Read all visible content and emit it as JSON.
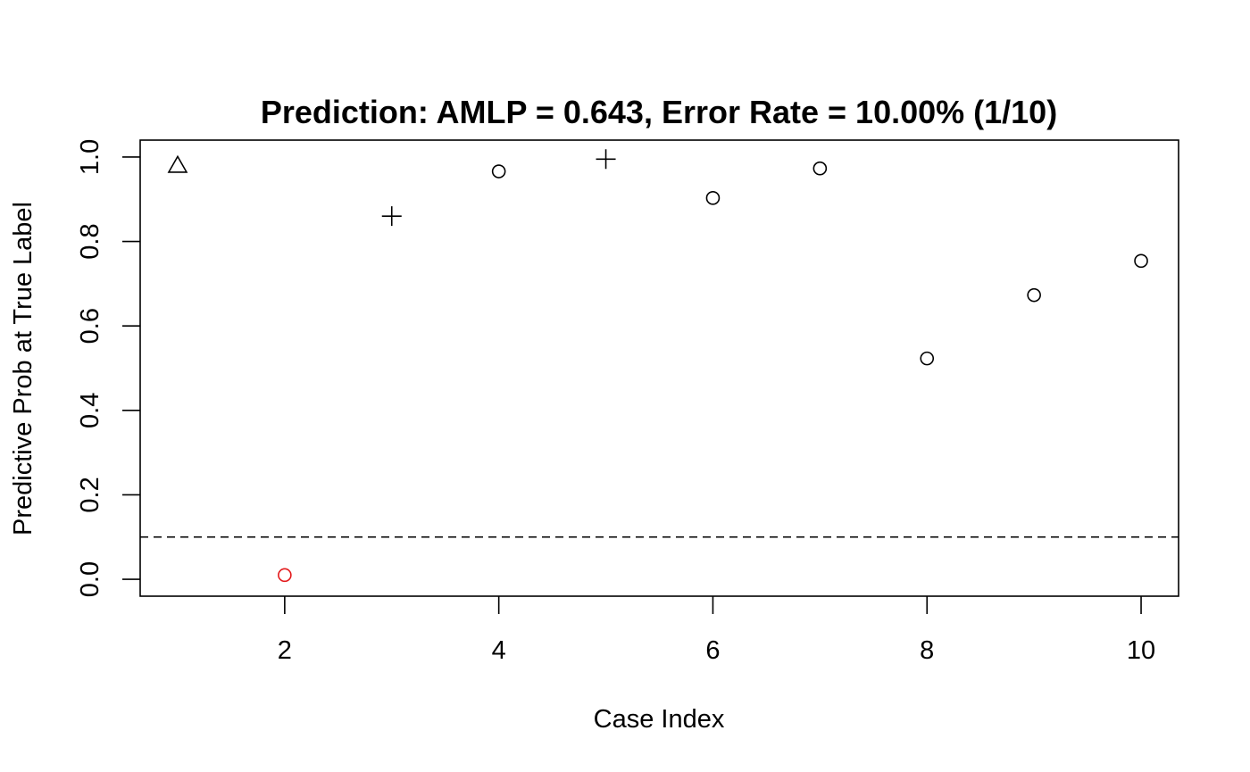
{
  "chart_data": {
    "type": "scatter",
    "title": "Prediction: AMLP = 0.643, Error Rate = 10.00% (1/10)",
    "xlabel": "Case Index",
    "ylabel": "Predictive Prob at True Label",
    "xlim": [
      0.65,
      10.35
    ],
    "ylim": [
      -0.04,
      1.04
    ],
    "x_ticks": [
      2,
      4,
      6,
      8,
      10
    ],
    "y_ticks": [
      0.0,
      0.2,
      0.4,
      0.6,
      0.8,
      1.0
    ],
    "x_tick_labels": [
      "2",
      "4",
      "6",
      "8",
      "10"
    ],
    "y_tick_labels": [
      "0.0",
      "0.2",
      "0.4",
      "0.6",
      "0.8",
      "1.0"
    ],
    "threshold": 0.1,
    "grid": false,
    "points": [
      {
        "x": 1,
        "y": 0.98,
        "shape": "triangle",
        "color": "#000000"
      },
      {
        "x": 2,
        "y": 0.01,
        "shape": "circle",
        "color": "#e31a1c"
      },
      {
        "x": 3,
        "y": 0.86,
        "shape": "plus",
        "color": "#000000"
      },
      {
        "x": 4,
        "y": 0.966,
        "shape": "circle",
        "color": "#000000"
      },
      {
        "x": 5,
        "y": 0.995,
        "shape": "plus",
        "color": "#000000"
      },
      {
        "x": 6,
        "y": 0.903,
        "shape": "circle",
        "color": "#000000"
      },
      {
        "x": 7,
        "y": 0.973,
        "shape": "circle",
        "color": "#000000"
      },
      {
        "x": 8,
        "y": 0.523,
        "shape": "circle",
        "color": "#000000"
      },
      {
        "x": 9,
        "y": 0.673,
        "shape": "circle",
        "color": "#000000"
      },
      {
        "x": 10,
        "y": 0.754,
        "shape": "circle",
        "color": "#000000"
      }
    ]
  }
}
